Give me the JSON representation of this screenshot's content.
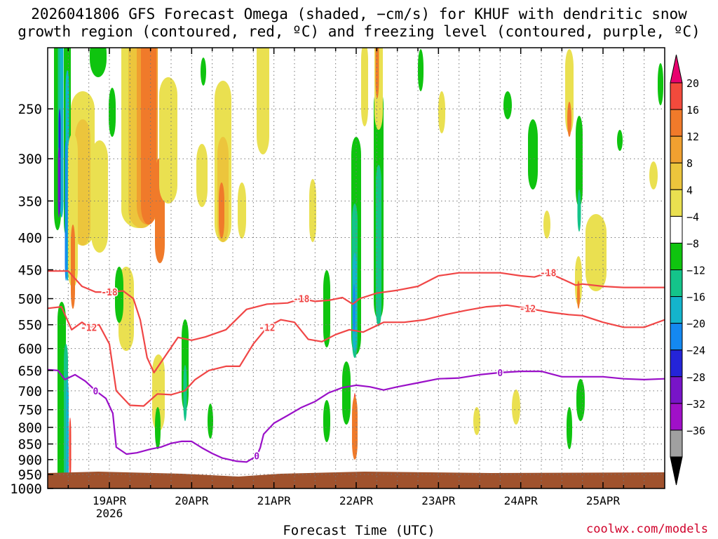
{
  "title": {
    "line1": "2026041806 GFS Forecast Omega (shaded, −cm/s) for KHUF with dendritic snow",
    "line2": "growth region (contoured, red, ºC) and freezing level (contoured, purple, ºC)"
  },
  "credit": "coolwx.com/models",
  "chart_data": {
    "type": "heatmap",
    "title": "2026041806 GFS Forecast Omega (shaded, −cm/s) for KHUF with dendritic snow growth region (contoured, red, ºC) and freezing level (contoured, purple, ºC)",
    "xlabel": "Forecast Time (UTC)",
    "ylabel": "",
    "x_ticks": [
      {
        "label": "19APR",
        "sublabel": "2026",
        "t": 18
      },
      {
        "label": "20APR",
        "sublabel": "",
        "t": 42
      },
      {
        "label": "21APR",
        "sublabel": "",
        "t": 66
      },
      {
        "label": "22APR",
        "sublabel": "",
        "t": 90
      },
      {
        "label": "23APR",
        "sublabel": "",
        "t": 114
      },
      {
        "label": "24APR",
        "sublabel": "",
        "t": 138
      },
      {
        "label": "25APR",
        "sublabel": "",
        "t": 162
      }
    ],
    "x_range_hours": [
      0,
      180
    ],
    "y_ticks": [
      250,
      300,
      350,
      400,
      450,
      500,
      550,
      600,
      650,
      700,
      750,
      800,
      850,
      900,
      950,
      1000
    ],
    "y_range_hpa": [
      200,
      1000
    ],
    "colorbar": {
      "labels": [
        "20",
        "16",
        "12",
        "8",
        "4",
        "−4",
        "−8",
        "−12",
        "−16",
        "−20",
        "−24",
        "−28",
        "−32",
        "−36"
      ],
      "colors": [
        "#e8006f",
        "#f24a3c",
        "#f07a2a",
        "#f0a030",
        "#ecc53c",
        "#eae050",
        "#ffffff",
        "#0fc40f",
        "#14c48a",
        "#14b4cc",
        "#1488f0",
        "#2424d8",
        "#7814c8",
        "#a010c8",
        "#a0a0a0",
        "#000000"
      ]
    },
    "contours": [
      {
        "name": "-18C",
        "color": "#f04646",
        "label": "-18",
        "points": [
          [
            0,
            452
          ],
          [
            6,
            452
          ],
          [
            10,
            478
          ],
          [
            14,
            488
          ],
          [
            18,
            488
          ],
          [
            22,
            486
          ],
          [
            25,
            500
          ],
          [
            27,
            540
          ],
          [
            29,
            620
          ],
          [
            31,
            655
          ],
          [
            34,
            620
          ],
          [
            38,
            576
          ],
          [
            42,
            582
          ],
          [
            46,
            575
          ],
          [
            52,
            560
          ],
          [
            58,
            520
          ],
          [
            64,
            510
          ],
          [
            70,
            508
          ],
          [
            74,
            500
          ],
          [
            78,
            505
          ],
          [
            82,
            503
          ],
          [
            86,
            498
          ],
          [
            89,
            510
          ],
          [
            91,
            500
          ],
          [
            96,
            490
          ],
          [
            102,
            485
          ],
          [
            108,
            478
          ],
          [
            114,
            460
          ],
          [
            120,
            455
          ],
          [
            126,
            455
          ],
          [
            132,
            455
          ],
          [
            138,
            460
          ],
          [
            142,
            462
          ],
          [
            146,
            455
          ],
          [
            150,
            465
          ],
          [
            154,
            476
          ],
          [
            156,
            474
          ],
          [
            162,
            478
          ],
          [
            168,
            480
          ],
          [
            174,
            480
          ],
          [
            180,
            480
          ]
        ]
      },
      {
        "name": "-12C",
        "color": "#f04646",
        "label": "-12",
        "points": [
          [
            0,
            518
          ],
          [
            4,
            515
          ],
          [
            7,
            560
          ],
          [
            10,
            545
          ],
          [
            12,
            555
          ],
          [
            15,
            550
          ],
          [
            18,
            590
          ],
          [
            20,
            700
          ],
          [
            24,
            738
          ],
          [
            28,
            740
          ],
          [
            32,
            708
          ],
          [
            36,
            710
          ],
          [
            40,
            700
          ],
          [
            43,
            672
          ],
          [
            47,
            650
          ],
          [
            52,
            640
          ],
          [
            56,
            640
          ],
          [
            60,
            590
          ],
          [
            64,
            555
          ],
          [
            68,
            540
          ],
          [
            72,
            545
          ],
          [
            76,
            580
          ],
          [
            80,
            585
          ],
          [
            84,
            570
          ],
          [
            88,
            560
          ],
          [
            92,
            565
          ],
          [
            98,
            545
          ],
          [
            104,
            545
          ],
          [
            110,
            540
          ],
          [
            116,
            530
          ],
          [
            122,
            522
          ],
          [
            128,
            515
          ],
          [
            134,
            512
          ],
          [
            140,
            518
          ],
          [
            146,
            525
          ],
          [
            152,
            530
          ],
          [
            156,
            532
          ],
          [
            162,
            545
          ],
          [
            168,
            555
          ],
          [
            174,
            555
          ],
          [
            180,
            540
          ]
        ]
      },
      {
        "name": "0C",
        "color": "#9a10c8",
        "label": "0",
        "points": [
          [
            0,
            648
          ],
          [
            3,
            650
          ],
          [
            5,
            672
          ],
          [
            8,
            660
          ],
          [
            11,
            676
          ],
          [
            14,
            700
          ],
          [
            17,
            720
          ],
          [
            19,
            760
          ],
          [
            20,
            860
          ],
          [
            23,
            882
          ],
          [
            26,
            878
          ],
          [
            30,
            866
          ],
          [
            33,
            860
          ],
          [
            36,
            848
          ],
          [
            39,
            842
          ],
          [
            42,
            842
          ],
          [
            45,
            862
          ],
          [
            48,
            880
          ],
          [
            51,
            895
          ],
          [
            55,
            905
          ],
          [
            58,
            908
          ],
          [
            61,
            888
          ],
          [
            62,
            862
          ],
          [
            63,
            820
          ],
          [
            66,
            788
          ],
          [
            70,
            766
          ],
          [
            74,
            744
          ],
          [
            78,
            728
          ],
          [
            82,
            705
          ],
          [
            86,
            692
          ],
          [
            90,
            686
          ],
          [
            94,
            690
          ],
          [
            98,
            698
          ],
          [
            102,
            690
          ],
          [
            108,
            680
          ],
          [
            114,
            670
          ],
          [
            120,
            668
          ],
          [
            126,
            660
          ],
          [
            132,
            655
          ],
          [
            138,
            652
          ],
          [
            144,
            652
          ],
          [
            150,
            665
          ],
          [
            156,
            665
          ],
          [
            162,
            665
          ],
          [
            168,
            670
          ],
          [
            174,
            672
          ],
          [
            180,
            670
          ]
        ]
      }
    ]
  }
}
